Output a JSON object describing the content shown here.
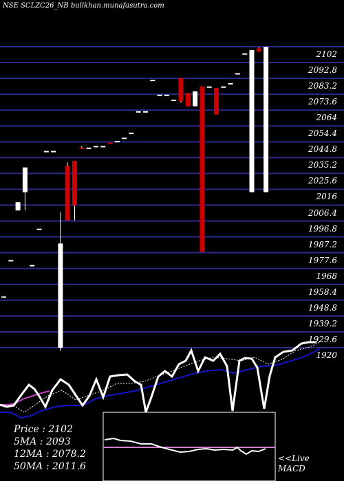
{
  "header": {
    "title": "NSE SCLZC26_NB bullkhan.munafasutra.com"
  },
  "chart_data": {
    "type": "candlestick",
    "ylim": [
      1920,
      2102
    ],
    "yticks": [
      "2102",
      "2092.8",
      "2083.2",
      "2073.6",
      "2064",
      "2054.4",
      "2044.8",
      "2035.2",
      "2025.6",
      "2016",
      "2006.4",
      "1996.8",
      "1987.2",
      "1977.6",
      "1968",
      "1958.4",
      "1948.8",
      "1939.2",
      "1929.6",
      "1920"
    ],
    "candles": [
      {
        "o": 1951,
        "h": 1951,
        "l": 1951,
        "c": 1951,
        "col": "w"
      },
      {
        "o": 1973,
        "h": 1973,
        "l": 1973,
        "c": 1973,
        "col": "w"
      },
      {
        "o": 2003,
        "h": 2008,
        "l": 2003,
        "c": 2008,
        "col": "w"
      },
      {
        "o": 2014,
        "h": 2029,
        "l": 2003,
        "c": 2029,
        "col": "w"
      },
      {
        "o": 1970,
        "h": 1970,
        "l": 1970,
        "c": 1970,
        "col": "w"
      },
      {
        "o": 1992,
        "h": 1992,
        "l": 1992,
        "c": 1992,
        "col": "w"
      },
      {
        "o": 2039,
        "h": 2039,
        "l": 2039,
        "c": 2039,
        "col": "w"
      },
      {
        "o": 2039,
        "h": 2039,
        "l": 2039,
        "c": 2039,
        "col": "w"
      },
      {
        "o": 1920,
        "h": 2002,
        "l": 1918,
        "c": 1983,
        "col": "w"
      },
      {
        "o": 2030,
        "h": 2032,
        "l": 1997,
        "c": 1997,
        "col": "r"
      },
      {
        "o": 2033,
        "h": 2033,
        "l": 1997,
        "c": 2006,
        "col": "r"
      },
      {
        "o": 2041,
        "h": 2042,
        "l": 2041,
        "c": 2041,
        "col": "r"
      },
      {
        "o": 2041,
        "h": 2041,
        "l": 2041,
        "c": 2041,
        "col": "w"
      },
      {
        "o": 2042,
        "h": 2042,
        "l": 2042,
        "c": 2042,
        "col": "w"
      },
      {
        "o": 2042,
        "h": 2042,
        "l": 2042,
        "c": 2042,
        "col": "w"
      },
      {
        "o": 2044,
        "h": 2044,
        "l": 2044,
        "c": 2044,
        "col": "r"
      },
      {
        "o": 2045,
        "h": 2045,
        "l": 2045,
        "c": 2045,
        "col": "w"
      },
      {
        "o": 2047,
        "h": 2047,
        "l": 2047,
        "c": 2047,
        "col": "w"
      },
      {
        "o": 2050,
        "h": 2050,
        "l": 2050,
        "c": 2050,
        "col": "w"
      },
      {
        "o": 2063,
        "h": 2063,
        "l": 2063,
        "c": 2063,
        "col": "w"
      },
      {
        "o": 2063,
        "h": 2063,
        "l": 2063,
        "c": 2063,
        "col": "w"
      },
      {
        "o": 2082,
        "h": 2082,
        "l": 2082,
        "c": 2082,
        "col": "w"
      },
      {
        "o": 2073,
        "h": 2073,
        "l": 2073,
        "c": 2073,
        "col": "w"
      },
      {
        "o": 2073,
        "h": 2073,
        "l": 2073,
        "c": 2073,
        "col": "w"
      },
      {
        "o": 2070,
        "h": 2070,
        "l": 2070,
        "c": 2070,
        "col": "w"
      },
      {
        "o": 2083,
        "h": 2083,
        "l": 2068,
        "c": 2069,
        "col": "r"
      },
      {
        "o": 2074,
        "h": 2074,
        "l": 2066,
        "c": 2066,
        "col": "r"
      },
      {
        "o": 2066,
        "h": 2075,
        "l": 2066,
        "c": 2075,
        "col": "w"
      },
      {
        "o": 2078,
        "h": 2078,
        "l": 1978,
        "c": 1978,
        "col": "r"
      },
      {
        "o": 2078,
        "h": 2078,
        "l": 2078,
        "c": 2078,
        "col": "w"
      },
      {
        "o": 2077,
        "h": 2077,
        "l": 2061,
        "c": 2061,
        "col": "r"
      },
      {
        "o": 2078,
        "h": 2078,
        "l": 2078,
        "c": 2078,
        "col": "w"
      },
      {
        "o": 2080,
        "h": 2080,
        "l": 2080,
        "c": 2080,
        "col": "w"
      },
      {
        "o": 2086,
        "h": 2086,
        "l": 2086,
        "c": 2086,
        "col": "w"
      },
      {
        "o": 2098,
        "h": 2098,
        "l": 2098,
        "c": 2098,
        "col": "w"
      },
      {
        "o": 2014,
        "h": 2100,
        "l": 2014,
        "c": 2100,
        "col": "w"
      },
      {
        "o": 2101,
        "h": 2102,
        "l": 2099,
        "c": 2099,
        "col": "r"
      },
      {
        "o": 2014,
        "h": 2102,
        "l": 2014,
        "c": 2102,
        "col": "w"
      }
    ],
    "indicators": {
      "price_label": "Price",
      "price": "2102",
      "ma5_label": "5MA",
      "ma5": "2093",
      "ma12_label": "12MA",
      "ma12": "2078.2",
      "ma50_label": "50MA",
      "ma50": "2011.6"
    },
    "macd_label": "<<Live\nMACD",
    "colors": {
      "background": "#000000",
      "grid": "#2a2a8a",
      "up": "#ffffff",
      "down": "#cc0000",
      "ma50": "#1515c8",
      "ma_early": "#c040c0",
      "signal": "#d080d0"
    }
  }
}
